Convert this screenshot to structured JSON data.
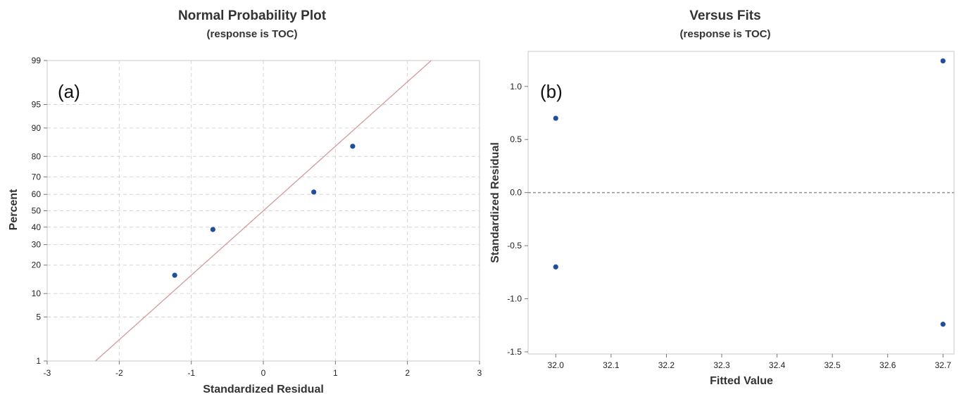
{
  "chart_data": [
    {
      "type": "scatter",
      "title": "Normal Probability Plot",
      "subtitle": "(response is TOC)",
      "panel_label": "(a)",
      "xlabel": "Standardized Residual",
      "ylabel": "Percent",
      "xlim": [
        -3,
        3
      ],
      "x_ticks": [
        -3,
        -2,
        -1,
        0,
        1,
        2,
        3
      ],
      "x_tick_labels": [
        "-3",
        "-2",
        "-1",
        "0",
        "1",
        "2",
        "3"
      ],
      "y_scale": "normal probability",
      "y_ticks": [
        1,
        5,
        10,
        20,
        30,
        40,
        50,
        60,
        70,
        80,
        90,
        95,
        99
      ],
      "y_tick_labels": [
        "1",
        "5",
        "10",
        "20",
        "30",
        "40",
        "50",
        "60",
        "70",
        "80",
        "90",
        "95",
        "99"
      ],
      "grid": true,
      "points": [
        {
          "x": -1.23,
          "y": 15.9
        },
        {
          "x": -0.7,
          "y": 38.6
        },
        {
          "x": 0.7,
          "y": 61.4
        },
        {
          "x": 1.24,
          "y": 84.1
        }
      ],
      "reference_line": {
        "percent_at_x0": 50,
        "percent_at_x1": 84.1
      },
      "colors": {
        "points": "#1f4e9c",
        "reference_line": "#d49a9a"
      }
    },
    {
      "type": "scatter",
      "title": "Versus Fits",
      "subtitle": "(response is TOC)",
      "panel_label": "(b)",
      "xlabel": "Fitted Value",
      "ylabel": "Standardized Residual",
      "xlim": [
        31.95,
        32.72
      ],
      "ylim": [
        -1.52,
        1.33
      ],
      "x_ticks": [
        32.0,
        32.1,
        32.2,
        32.3,
        32.4,
        32.5,
        32.6,
        32.7
      ],
      "x_tick_labels": [
        "32.0",
        "32.1",
        "32.2",
        "32.3",
        "32.4",
        "32.5",
        "32.6",
        "32.7"
      ],
      "y_ticks": [
        -1.5,
        -1.0,
        -0.5,
        0.0,
        0.5,
        1.0
      ],
      "y_tick_labels": [
        "-1.5",
        "-1.0",
        "-0.5",
        "0.0",
        "0.5",
        "1.0"
      ],
      "grid": false,
      "reference_line_y": 0.0,
      "points": [
        {
          "x": 32.0,
          "y": 0.7
        },
        {
          "x": 32.0,
          "y": -0.7
        },
        {
          "x": 32.7,
          "y": 1.24
        },
        {
          "x": 32.7,
          "y": -1.24
        }
      ],
      "colors": {
        "points": "#1f4e9c",
        "reference_line": "#999999"
      }
    }
  ]
}
